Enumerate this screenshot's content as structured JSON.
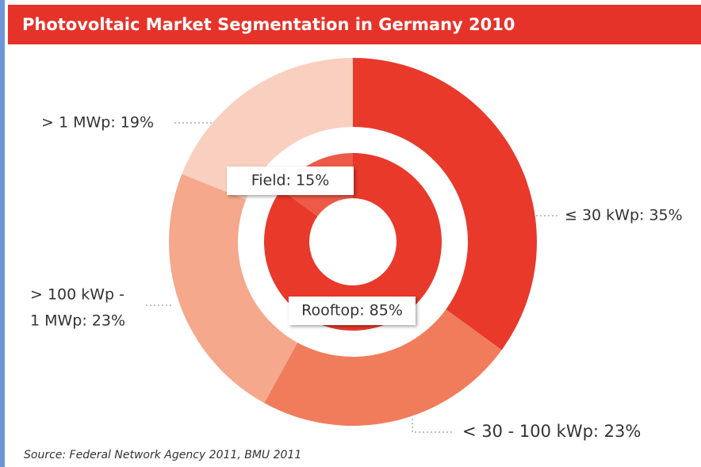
{
  "chart_data": {
    "type": "pie",
    "title": "Photovoltaic Market Segmentation in Germany 2010",
    "source": "Source: Federal Network Agency 2011, BMU 2011",
    "series": [
      {
        "categories": [
          [
            "≤ 30 kWp: 35%"
          ],
          [
            "< 30 - 100 kWp: 23%"
          ],
          [
            "> 100 kWp -",
            "1 MWp: 23%"
          ],
          [
            "> 1 MWp: 19%"
          ]
        ],
        "values": [
          35,
          23,
          23,
          19
        ],
        "colors": [
          "#e8392b",
          "#f07c5c",
          "#f5a88b",
          "#f9cfbf"
        ]
      },
      {
        "categories": [
          [
            "Rooftop: 85%"
          ],
          [
            "Field: 15%"
          ]
        ],
        "values": [
          85,
          15
        ],
        "colors": [
          "#e8392b",
          "#ee5a48"
        ]
      }
    ]
  }
}
